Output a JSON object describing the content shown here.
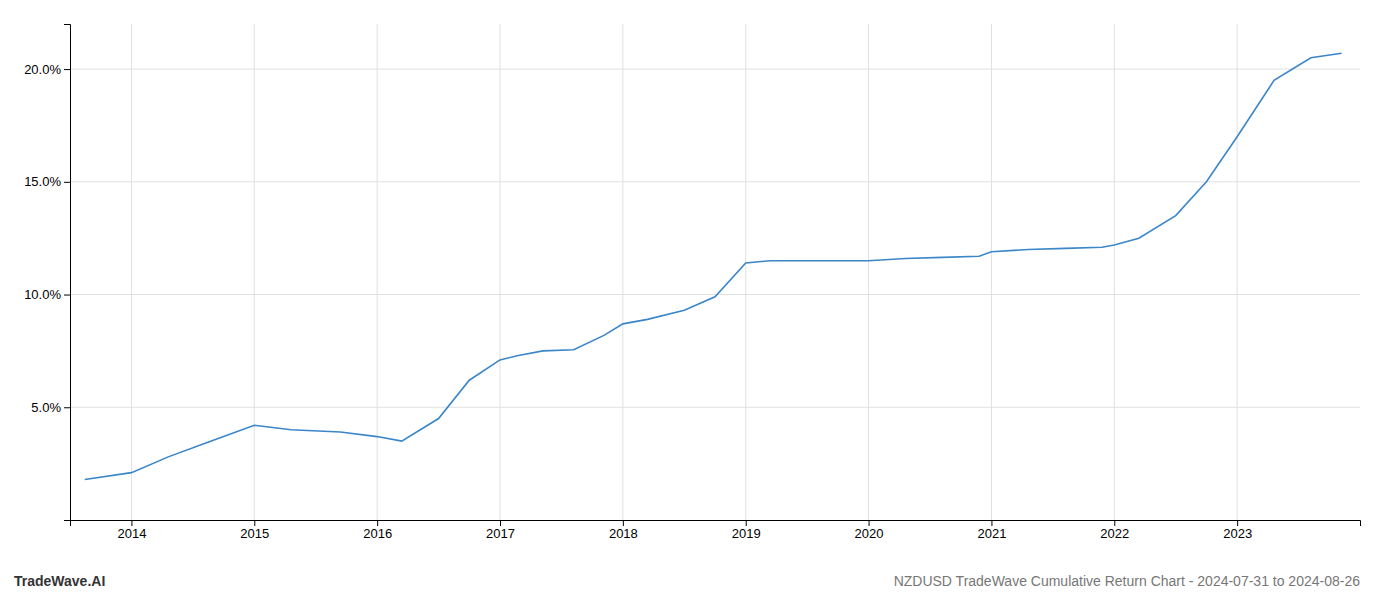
{
  "chart_data": {
    "type": "line",
    "title": "NZDUSD TradeWave Cumulative Return Chart - 2024-07-31 to 2024-08-26",
    "annotations": [
      {
        "text": "TradeWave.AI"
      }
    ],
    "x": [
      2013.62,
      2014.0,
      2014.3,
      2014.6,
      2015.0,
      2015.3,
      2015.7,
      2016.0,
      2016.2,
      2016.5,
      2016.75,
      2017.0,
      2017.15,
      2017.35,
      2017.6,
      2017.85,
      2018.0,
      2018.2,
      2018.5,
      2018.75,
      2019.0,
      2019.2,
      2019.4,
      2019.6,
      2019.8,
      2020.0,
      2020.3,
      2020.6,
      2020.9,
      2021.0,
      2021.3,
      2021.6,
      2021.9,
      2022.0,
      2022.2,
      2022.5,
      2022.75,
      2023.0,
      2023.3,
      2023.6,
      2023.85
    ],
    "values": [
      1.8,
      2.1,
      2.8,
      3.4,
      4.2,
      4.0,
      3.9,
      3.7,
      3.5,
      4.5,
      6.2,
      7.1,
      7.3,
      7.5,
      7.55,
      8.2,
      8.7,
      8.9,
      9.3,
      9.9,
      11.4,
      11.5,
      11.5,
      11.5,
      11.5,
      11.5,
      11.6,
      11.65,
      11.7,
      11.9,
      12.0,
      12.05,
      12.1,
      12.2,
      12.5,
      13.5,
      15.0,
      17.0,
      19.5,
      20.5,
      20.7
    ],
    "color": "#3a86c8",
    "xlim": [
      2013.5,
      2024.0
    ],
    "ylim": [
      0,
      22
    ],
    "xticks": [
      2014,
      2015,
      2016,
      2017,
      2018,
      2019,
      2020,
      2021,
      2022,
      2023
    ],
    "yticks": [
      {
        "value": 5.0,
        "label": "5.0%"
      },
      {
        "value": 10.0,
        "label": "10.0%"
      },
      {
        "value": 15.0,
        "label": "15.0%"
      },
      {
        "value": 20.0,
        "label": "20.0%"
      }
    ],
    "grid": true
  }
}
